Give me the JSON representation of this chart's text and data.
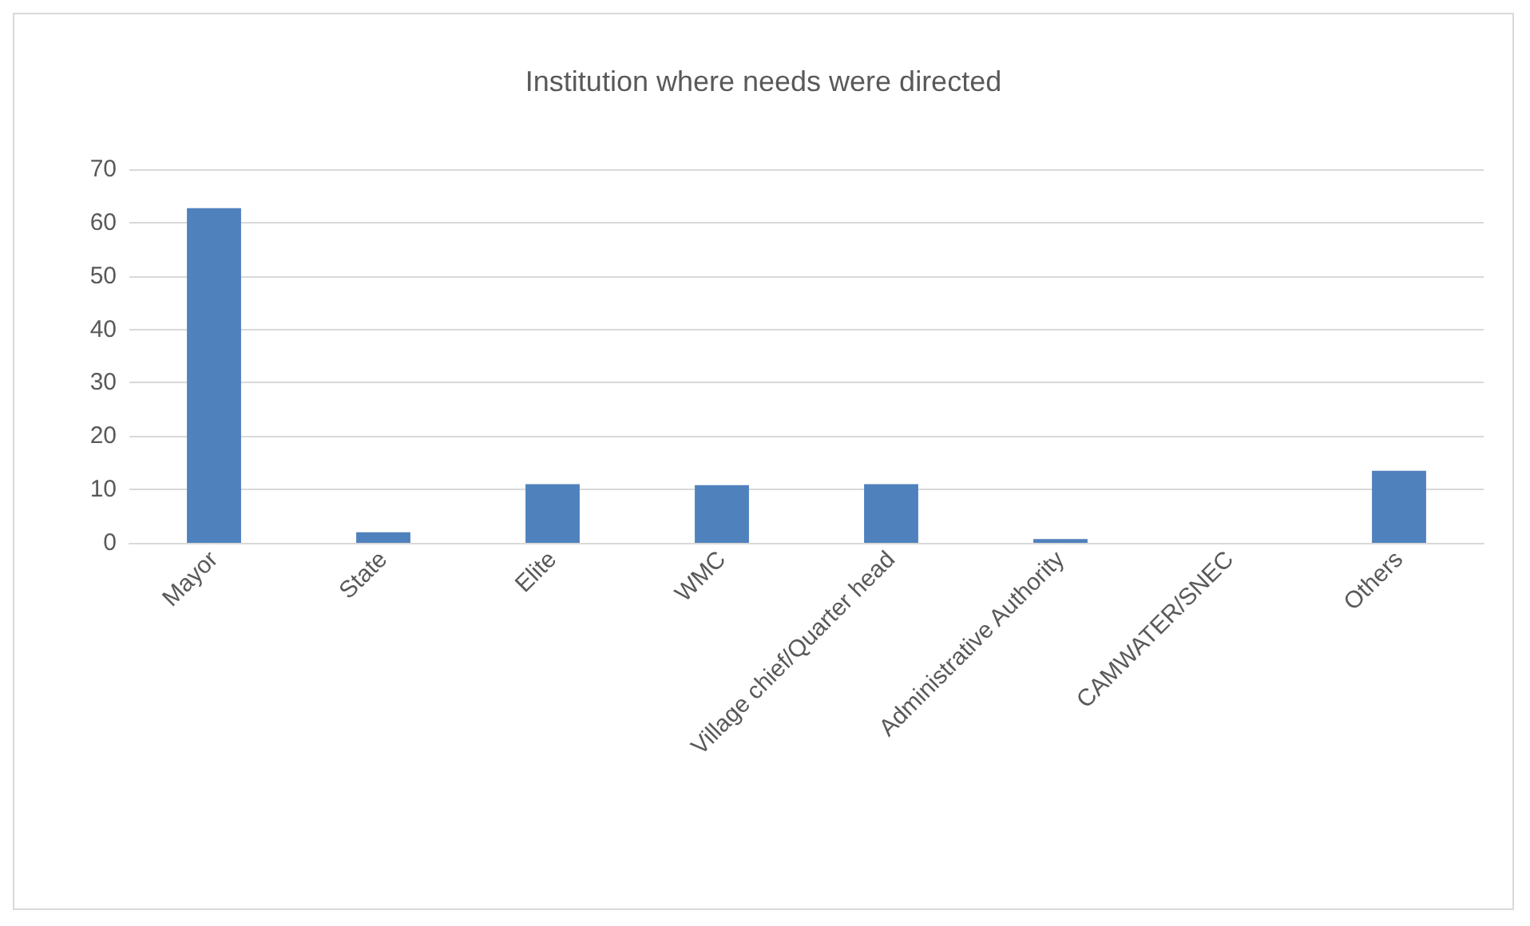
{
  "chart_data": {
    "type": "bar",
    "title": "Institution where needs were directed",
    "categories": [
      "Mayor",
      "State",
      "Elite",
      "WMC",
      "Village chief/Quarter head",
      "Administrative Authority",
      "CAMWATER/SNEC",
      "Others"
    ],
    "values": [
      62.7,
      2,
      11,
      10.8,
      11,
      0.7,
      0,
      13.5
    ],
    "color": "#4f81bd",
    "ylim": [
      0,
      70
    ],
    "yticks": [
      0,
      10,
      20,
      30,
      40,
      50,
      60,
      70
    ],
    "grid": "y"
  }
}
